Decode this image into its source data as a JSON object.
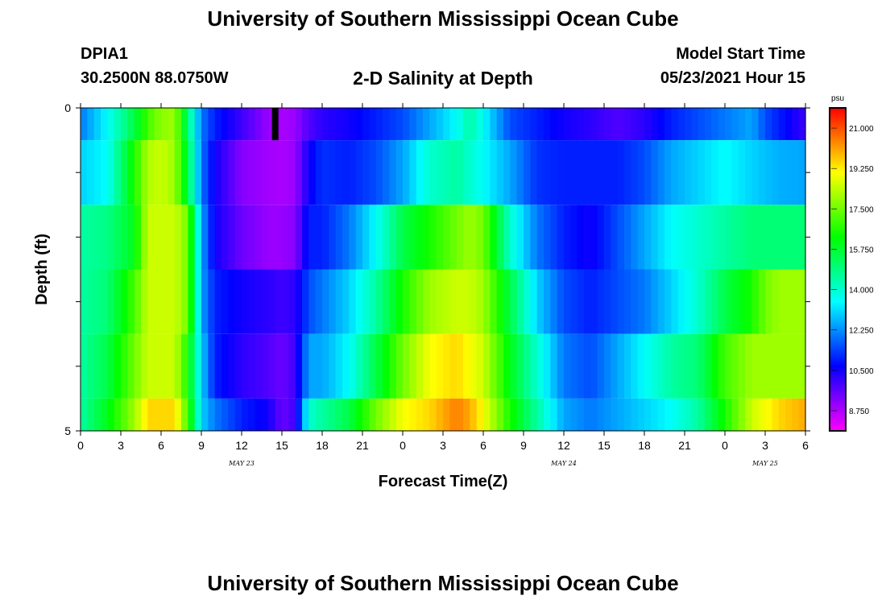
{
  "header": {
    "title": "University of Southern Mississippi Ocean Cube",
    "station": "DPIA1",
    "coords": "30.2500N  88.0750W",
    "subtitle": "2-D Salinity at Depth",
    "model_start_label": "Model Start Time",
    "model_start_value": "05/23/2021 Hour 15",
    "footer_title": "University of Southern Mississippi Ocean Cube"
  },
  "chart_data": {
    "type": "heatmap",
    "title": "2-D Salinity at Depth",
    "xlabel": "Forecast Time(Z)",
    "ylabel": "Depth (ft)",
    "x_tick_labels": [
      "0",
      "3",
      "6",
      "9",
      "12",
      "15",
      "18",
      "21",
      "0",
      "3",
      "6",
      "9",
      "12",
      "15",
      "18",
      "21",
      "0",
      "3",
      "6"
    ],
    "date_labels": [
      {
        "label": "MAY 23",
        "at_hour": 12
      },
      {
        "label": "MAY 24",
        "at_hour": 36
      },
      {
        "label": "MAY 25",
        "at_hour": 51
      }
    ],
    "xlim": [
      0,
      54
    ],
    "y_tick_labels": [
      {
        "depth": 0,
        "label": "0"
      },
      {
        "depth": 1,
        "label": ""
      },
      {
        "depth": 2,
        "label": ""
      },
      {
        "depth": 3,
        "label": ""
      },
      {
        "depth": 4,
        "label": ""
      },
      {
        "depth": 5,
        "label": "5"
      }
    ],
    "ylim": [
      0,
      5
    ],
    "depth_rows": [
      0,
      1,
      2,
      3,
      4
    ],
    "now_marker_hour": 14.5,
    "colorbar": {
      "unit": "psu",
      "min": 7.875,
      "max": 21.875,
      "labels": [
        "21.000",
        "19.250",
        "17.500",
        "15.750",
        "14.000",
        "12.250",
        "10.500",
        "8.750"
      ],
      "label_values": [
        21.0,
        19.25,
        17.5,
        15.75,
        14.0,
        12.25,
        10.5,
        8.75
      ]
    },
    "keyframes_hour": [
      0,
      2,
      4,
      5,
      6,
      7,
      8,
      9,
      10,
      12,
      14,
      15,
      16,
      17,
      18,
      20,
      22,
      24,
      26,
      28,
      29,
      30,
      32,
      34,
      36,
      38,
      40,
      42,
      44,
      46,
      48,
      50,
      51,
      52,
      54
    ],
    "salinity_keyframes": [
      [
        12.0,
        13.5,
        15.5,
        17.0,
        17.8,
        18.0,
        15.0,
        12.0,
        11.0,
        10.0,
        9.0,
        8.8,
        9.0,
        9.8,
        10.2,
        10.5,
        11.0,
        11.5,
        12.5,
        13.5,
        14.5,
        13.5,
        11.5,
        11.0,
        10.5,
        10.2,
        9.8,
        10.2,
        11.0,
        11.5,
        12.0,
        12.5,
        11.5,
        11.0,
        10.0
      ],
      [
        13.0,
        13.5,
        16.5,
        18.2,
        18.5,
        18.0,
        15.5,
        12.0,
        10.5,
        9.2,
        8.9,
        8.8,
        9.0,
        10.5,
        11.2,
        11.0,
        11.5,
        12.5,
        14.0,
        14.5,
        14.0,
        13.5,
        12.5,
        11.2,
        11.0,
        11.0,
        11.0,
        11.5,
        12.5,
        13.0,
        13.5,
        13.0,
        12.8,
        12.6,
        12.5
      ],
      [
        14.5,
        14.8,
        16.0,
        18.5,
        18.5,
        18.5,
        17.5,
        12.5,
        10.5,
        9.5,
        9.0,
        9.0,
        9.2,
        11.0,
        11.0,
        12.0,
        13.5,
        15.5,
        16.5,
        17.5,
        18.0,
        17.5,
        14.0,
        12.0,
        11.0,
        10.5,
        11.5,
        12.5,
        13.5,
        14.0,
        14.5,
        15.0,
        15.0,
        15.0,
        15.0
      ],
      [
        14.5,
        15.0,
        17.0,
        18.5,
        18.5,
        18.5,
        17.5,
        12.5,
        11.0,
        10.5,
        10.2,
        10.0,
        10.2,
        11.5,
        12.0,
        13.0,
        14.5,
        16.5,
        18.0,
        18.5,
        18.5,
        18.0,
        15.5,
        13.0,
        11.5,
        11.0,
        11.5,
        12.0,
        13.0,
        14.0,
        15.5,
        16.5,
        17.5,
        18.0,
        18.0
      ],
      [
        14.5,
        15.5,
        17.5,
        18.5,
        18.5,
        18.5,
        16.5,
        13.0,
        11.0,
        10.2,
        9.8,
        9.5,
        10.0,
        12.5,
        12.5,
        13.5,
        15.5,
        17.5,
        19.0,
        19.5,
        19.0,
        18.5,
        16.0,
        14.0,
        12.0,
        11.5,
        12.5,
        13.5,
        14.5,
        15.0,
        17.0,
        18.0,
        18.0,
        18.0,
        18.0
      ],
      [
        14.5,
        16.0,
        18.0,
        19.5,
        19.5,
        19.5,
        17.0,
        13.0,
        12.0,
        11.0,
        10.5,
        9.5,
        10.0,
        14.0,
        14.5,
        15.5,
        17.5,
        19.0,
        19.5,
        20.5,
        20.0,
        19.0,
        16.5,
        14.5,
        12.5,
        12.0,
        12.5,
        13.0,
        13.5,
        14.5,
        16.5,
        18.5,
        19.0,
        19.5,
        20.0
      ]
    ]
  }
}
